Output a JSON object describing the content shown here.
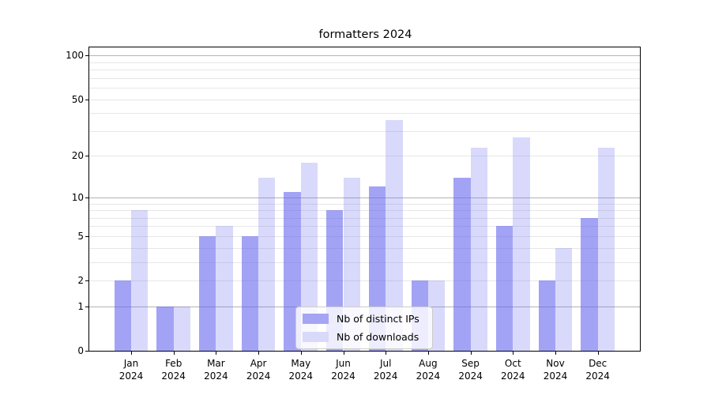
{
  "chart_data": {
    "type": "bar",
    "title": "formatters 2024",
    "categories": [
      "Jan",
      "Feb",
      "Mar",
      "Apr",
      "May",
      "Jun",
      "Jul",
      "Aug",
      "Sep",
      "Oct",
      "Nov",
      "Dec"
    ],
    "year": "2024",
    "series": [
      {
        "name": "Nb of distinct IPs",
        "values": [
          2,
          1,
          5,
          5,
          11,
          8,
          12,
          2,
          14,
          6,
          2,
          7
        ]
      },
      {
        "name": "Nb of downloads",
        "values": [
          8,
          1,
          6,
          14,
          18,
          14,
          36,
          2,
          23,
          27,
          4,
          23
        ]
      }
    ],
    "yscale": "log1p",
    "ylim": [
      0,
      115
    ],
    "ytick_labels": [
      100,
      50,
      20,
      10,
      5,
      2,
      1,
      0
    ],
    "major_gridlines": [
      1,
      10,
      100
    ],
    "minor_gridlines": [
      2,
      3,
      4,
      5,
      6,
      7,
      8,
      9,
      20,
      30,
      40,
      50,
      60,
      70,
      80,
      90
    ],
    "legend_position": "lower center",
    "grid": true
  },
  "colors": {
    "series_fill": [
      "rgba(102,102,238,0.60)",
      "rgba(102,102,238,0.25)"
    ],
    "legend_swatch": [
      "#a5a5f4",
      "#d9d9fa"
    ],
    "grid_major": "#b3b3b3",
    "grid_minor": "#e7e7e7",
    "axis": "#000000",
    "background": "#ffffff"
  }
}
